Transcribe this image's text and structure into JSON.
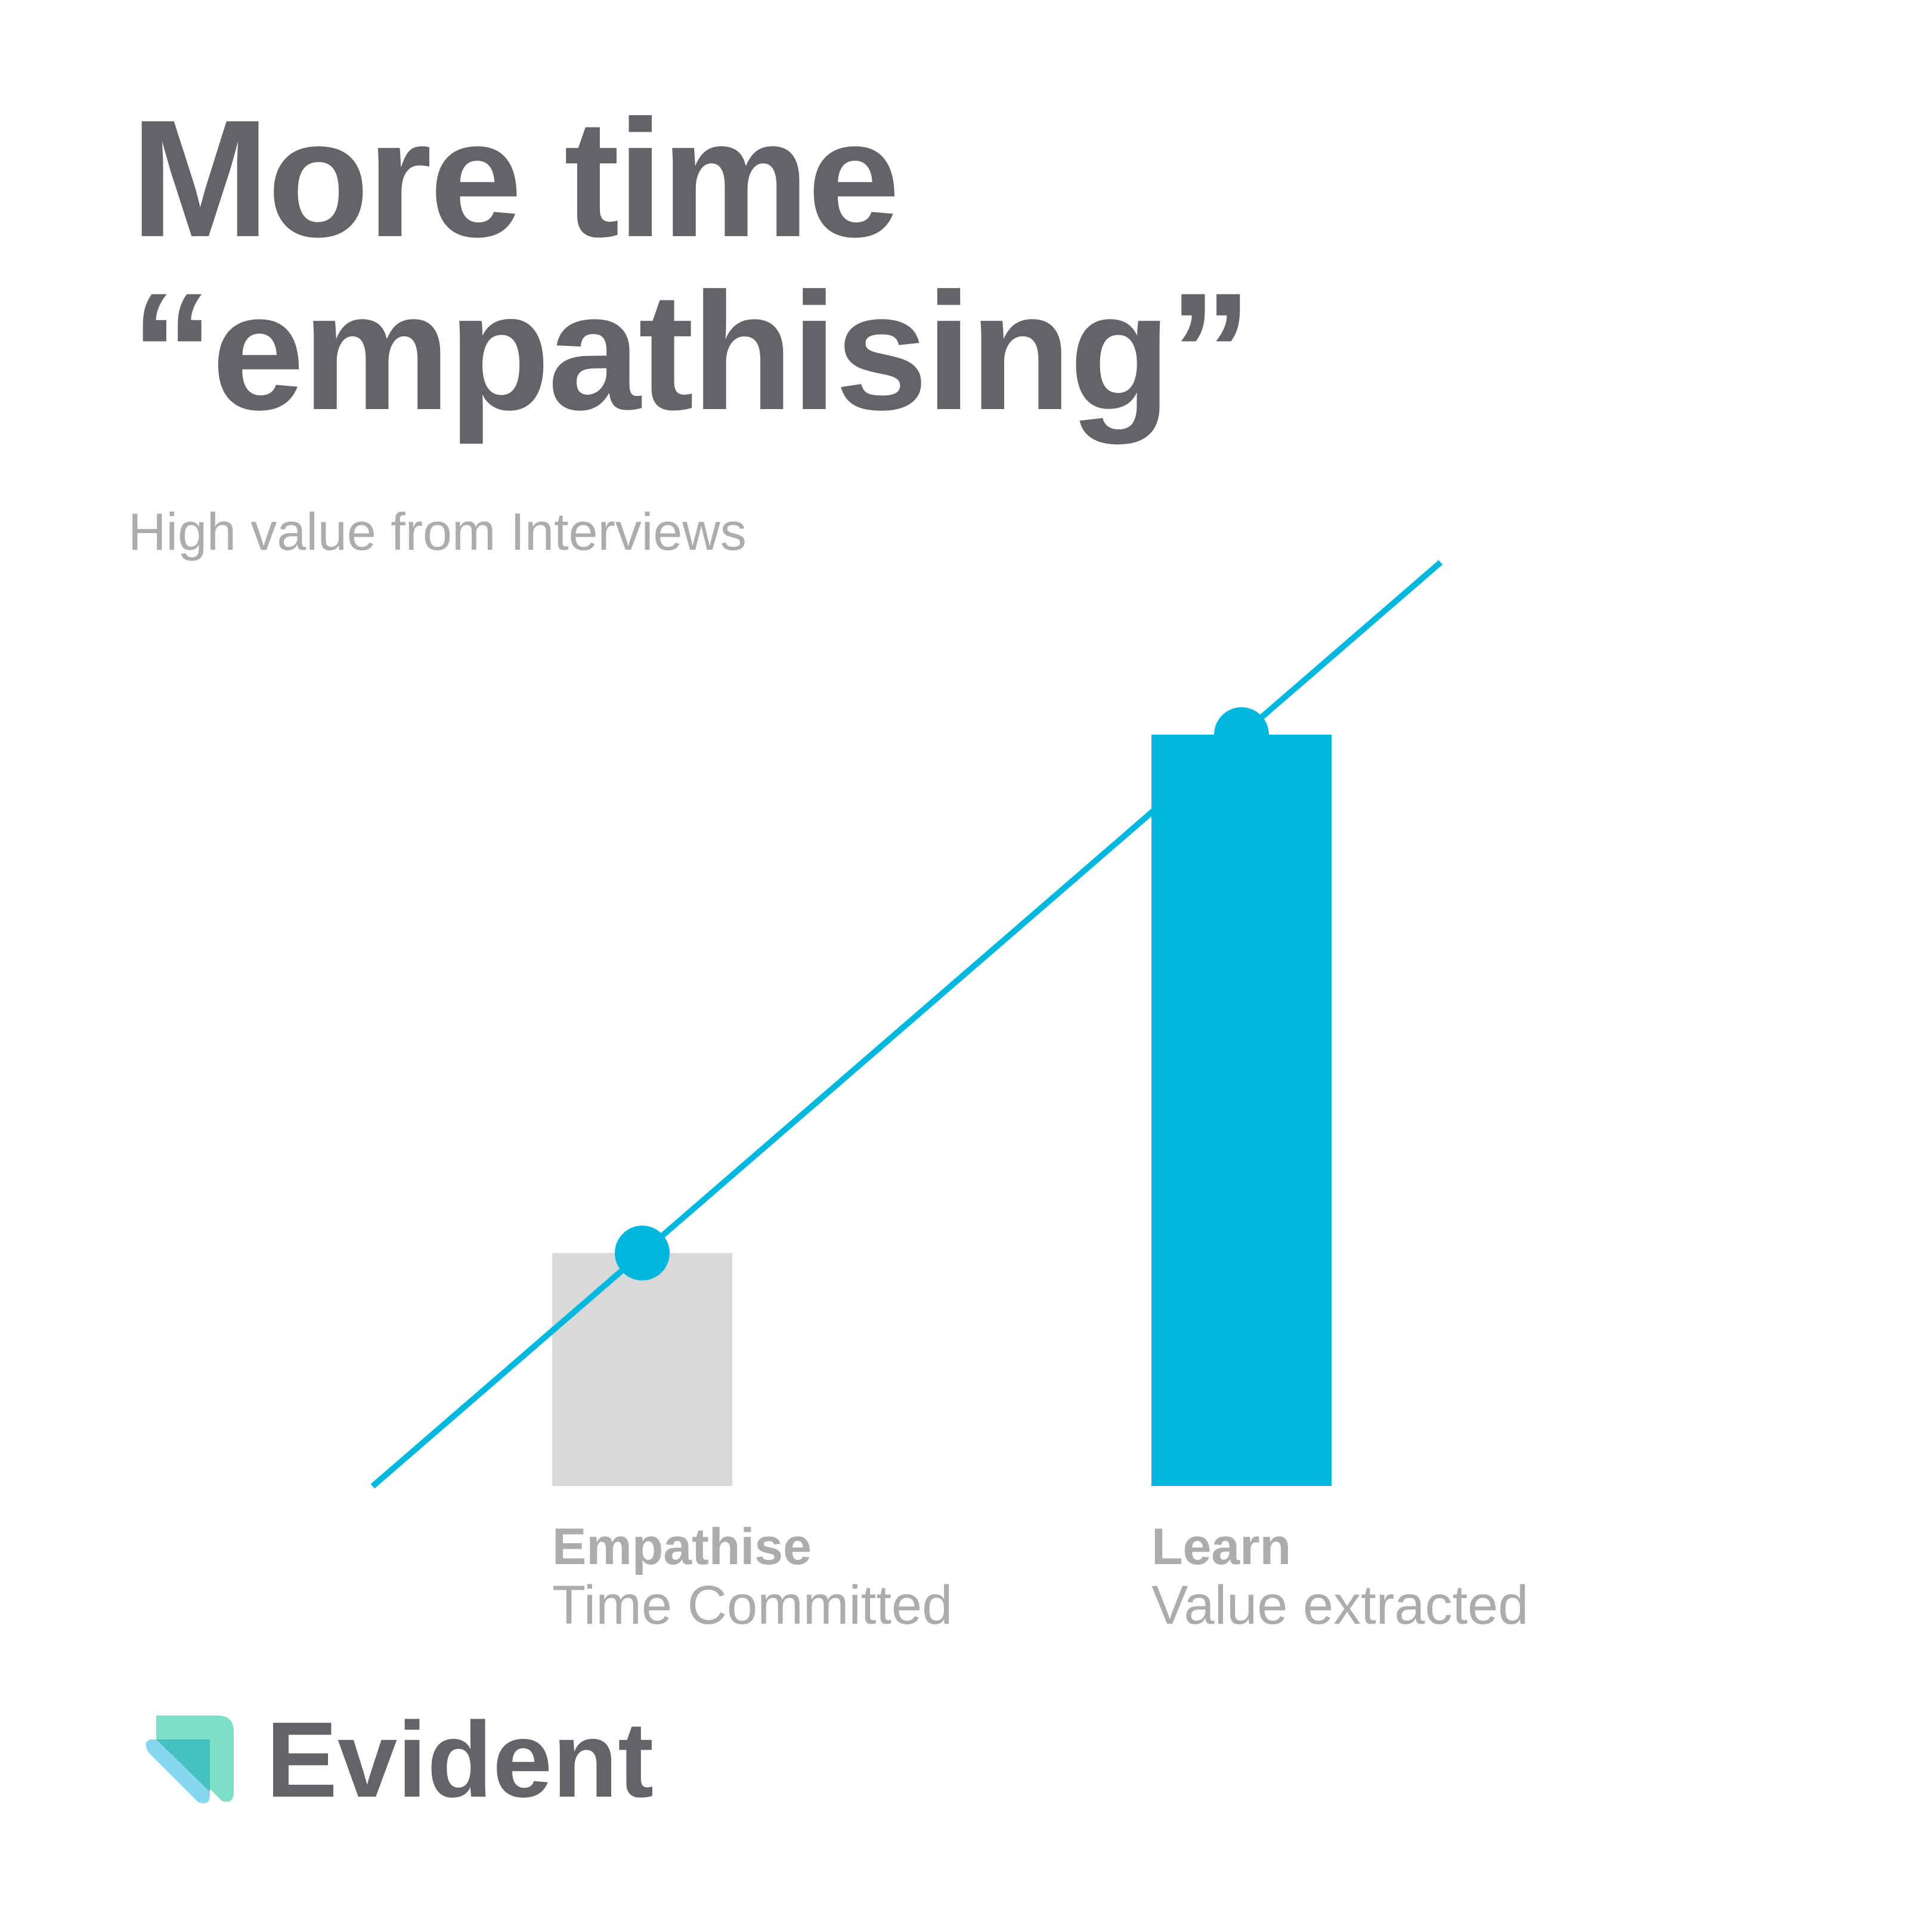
{
  "brand": "Evident",
  "chart_data": {
    "type": "bar",
    "title_lines": [
      "More time",
      "“empathising”"
    ],
    "subtitle": "High value from Interviews",
    "categories": [
      "Empathise",
      "Learn"
    ],
    "category_subtitles": [
      "Time Committed",
      "Value extracted"
    ],
    "values": [
      31,
      100
    ],
    "colors": [
      "#d9d9d9",
      "#00b8de"
    ],
    "trend_color": "#00b8de"
  }
}
